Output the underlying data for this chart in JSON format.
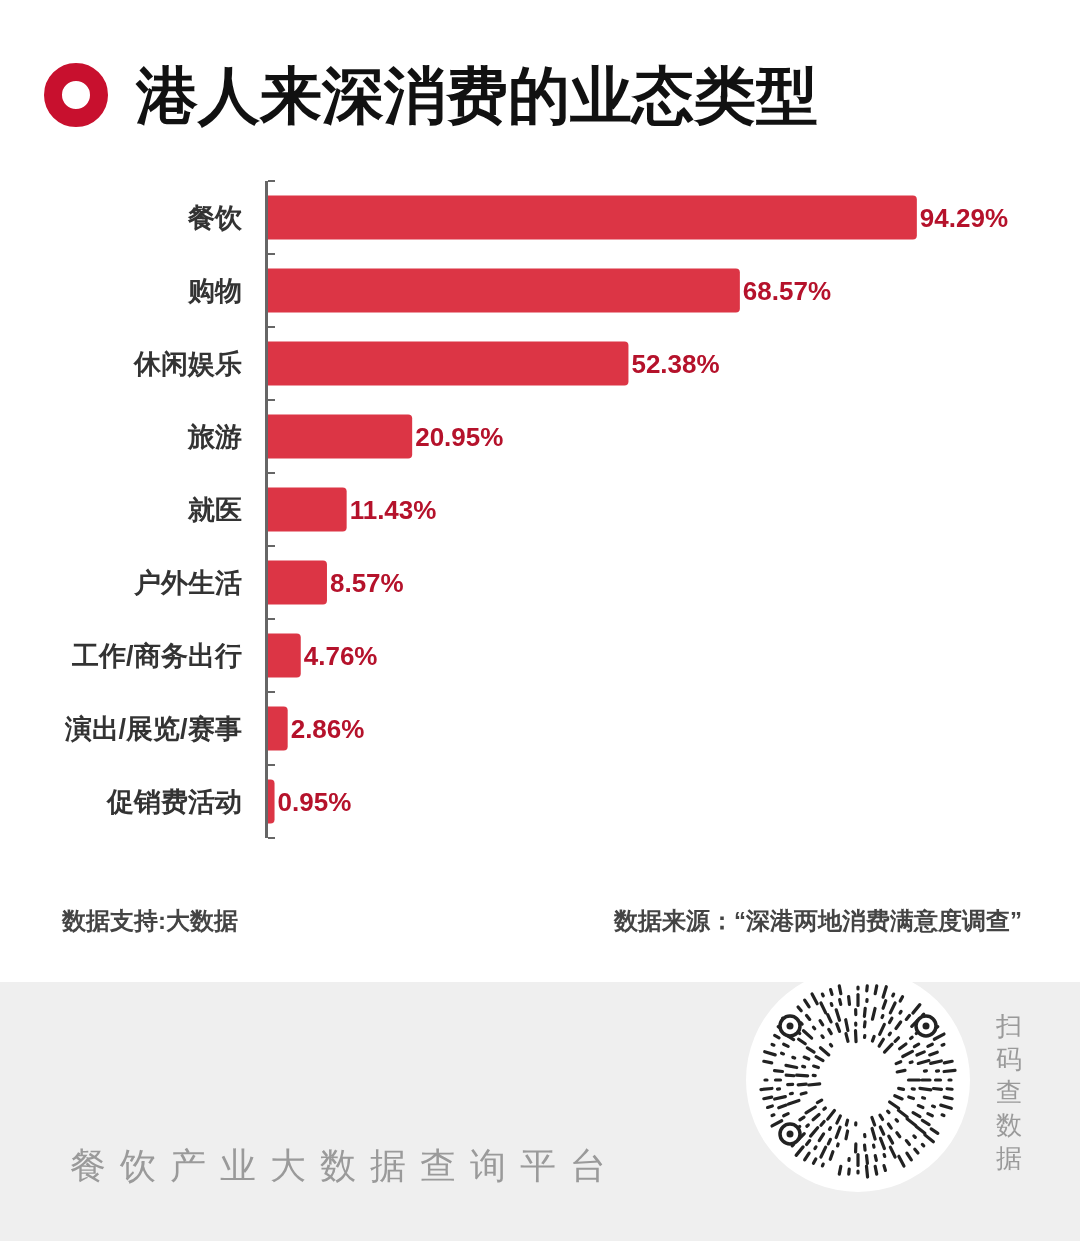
{
  "chart_data": {
    "type": "bar",
    "orientation": "horizontal",
    "title": "港人来深消费的业态类型",
    "categories": [
      "餐饮",
      "购物",
      "休闲娱乐",
      "旅游",
      "就医",
      "户外生活",
      "工作/商务出行",
      "演出/展览/赛事",
      "促销费活动"
    ],
    "values": [
      94.29,
      68.57,
      52.38,
      20.95,
      11.43,
      8.57,
      4.76,
      2.86,
      0.95
    ],
    "value_labels": [
      "94.29%",
      "68.57%",
      "52.38%",
      "20.95%",
      "11.43%",
      "8.57%",
      "4.76%",
      "2.86%",
      "0.95%"
    ],
    "color": "#dc3545",
    "annotations": [
      "数据支持:大数据",
      "数据来源：“深港两地消费满意度调查”",
      "餐饮产业大数据查询平台",
      "扫码查数据"
    ]
  }
}
